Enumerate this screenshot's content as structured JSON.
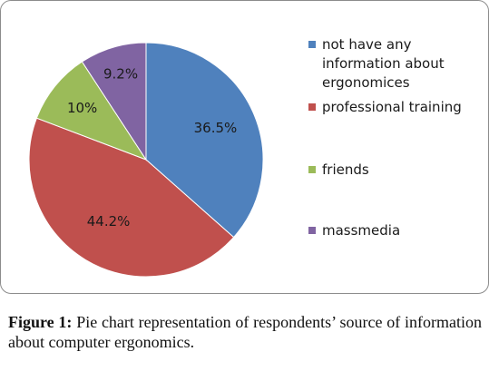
{
  "chart_data": {
    "type": "pie",
    "categories": [
      "not have any information about ergonomices",
      "professional training",
      "friends",
      "massmedia"
    ],
    "values": [
      36.5,
      44.2,
      10,
      9.2
    ],
    "labels": [
      "36.5%",
      "44.2%",
      "10%",
      "9.2%"
    ],
    "colors": [
      "#4f81bd",
      "#c0504d",
      "#9bbb59",
      "#8064a2"
    ],
    "start_angle_deg": 0,
    "direction": "clockwise",
    "legend_position": "right"
  },
  "caption": {
    "prefix": "Figure 1:",
    "text": "Pie chart representation of respondents’ source of information about computer ergonomics."
  }
}
